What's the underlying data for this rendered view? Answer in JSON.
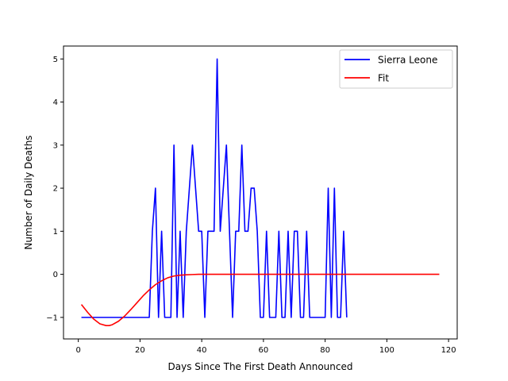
{
  "chart_data": {
    "type": "line",
    "title": "",
    "xlabel": "Days Since The First Death Announced",
    "ylabel": "Number of Daily Deaths",
    "xlim": [
      -4.8,
      122.8
    ],
    "ylim": [
      -1.5,
      5.3
    ],
    "xticks": [
      0,
      20,
      40,
      60,
      80,
      100,
      120
    ],
    "yticks": [
      -1,
      0,
      1,
      2,
      3,
      4,
      5
    ],
    "grid": false,
    "legend_position": "top-right",
    "series": [
      {
        "name": "Sierra Leone",
        "color": "#0000ff",
        "x": [
          1,
          2,
          3,
          4,
          5,
          6,
          7,
          8,
          9,
          10,
          11,
          12,
          13,
          14,
          15,
          16,
          17,
          18,
          19,
          20,
          21,
          22,
          23,
          24,
          25,
          26,
          27,
          28,
          29,
          30,
          31,
          32,
          33,
          34,
          35,
          36,
          37,
          38,
          39,
          40,
          41,
          42,
          43,
          44,
          45,
          46,
          47,
          48,
          49,
          50,
          51,
          52,
          53,
          54,
          55,
          56,
          57,
          58,
          59,
          60,
          61,
          62,
          63,
          64,
          65,
          66,
          67,
          68,
          69,
          70,
          71,
          72,
          73,
          74,
          75,
          76,
          77,
          78,
          79,
          80,
          81,
          82,
          83,
          84,
          85,
          86,
          87
        ],
        "y": [
          -1,
          -1,
          -1,
          -1,
          -1,
          -1,
          -1,
          -1,
          -1,
          -1,
          -1,
          -1,
          -1,
          -1,
          -1,
          -1,
          -1,
          -1,
          -1,
          -1,
          -1,
          -1,
          -1,
          1,
          2,
          -1,
          1,
          -1,
          -1,
          -1,
          3,
          -1,
          1,
          -1,
          1,
          2,
          3,
          2,
          1,
          1,
          -1,
          1,
          1,
          1,
          5,
          1,
          2,
          3,
          1,
          -1,
          1,
          1,
          3,
          1,
          1,
          2,
          2,
          1,
          -1,
          -1,
          1,
          -1,
          -1,
          -1,
          1,
          -1,
          -1,
          1,
          -1,
          1,
          1,
          -1,
          -1,
          1,
          -1,
          -1,
          -1,
          -1,
          -1,
          -1,
          2,
          -1,
          2,
          -1,
          -1,
          1,
          -1
        ]
      },
      {
        "name": "Fit",
        "color": "#ff0000",
        "function": "y = (A*(x-x0)^2 + C) * exp(-((x-x0)/s)^2) approaching 0",
        "x": [
          1,
          3,
          5,
          7,
          9,
          10,
          11,
          13,
          15,
          17,
          19,
          21,
          23,
          25,
          27,
          29,
          31,
          33,
          35,
          37,
          39,
          41,
          43,
          45,
          50,
          60,
          70,
          80,
          90,
          100,
          110,
          117
        ],
        "y": [
          -0.7,
          -0.88,
          -1.04,
          -1.15,
          -1.19,
          -1.19,
          -1.17,
          -1.09,
          -0.97,
          -0.82,
          -0.66,
          -0.5,
          -0.36,
          -0.24,
          -0.15,
          -0.08,
          -0.04,
          -0.02,
          -0.01,
          -0.005,
          0,
          0,
          0,
          0,
          0,
          0,
          0,
          0,
          0,
          0,
          0,
          0
        ]
      }
    ]
  }
}
